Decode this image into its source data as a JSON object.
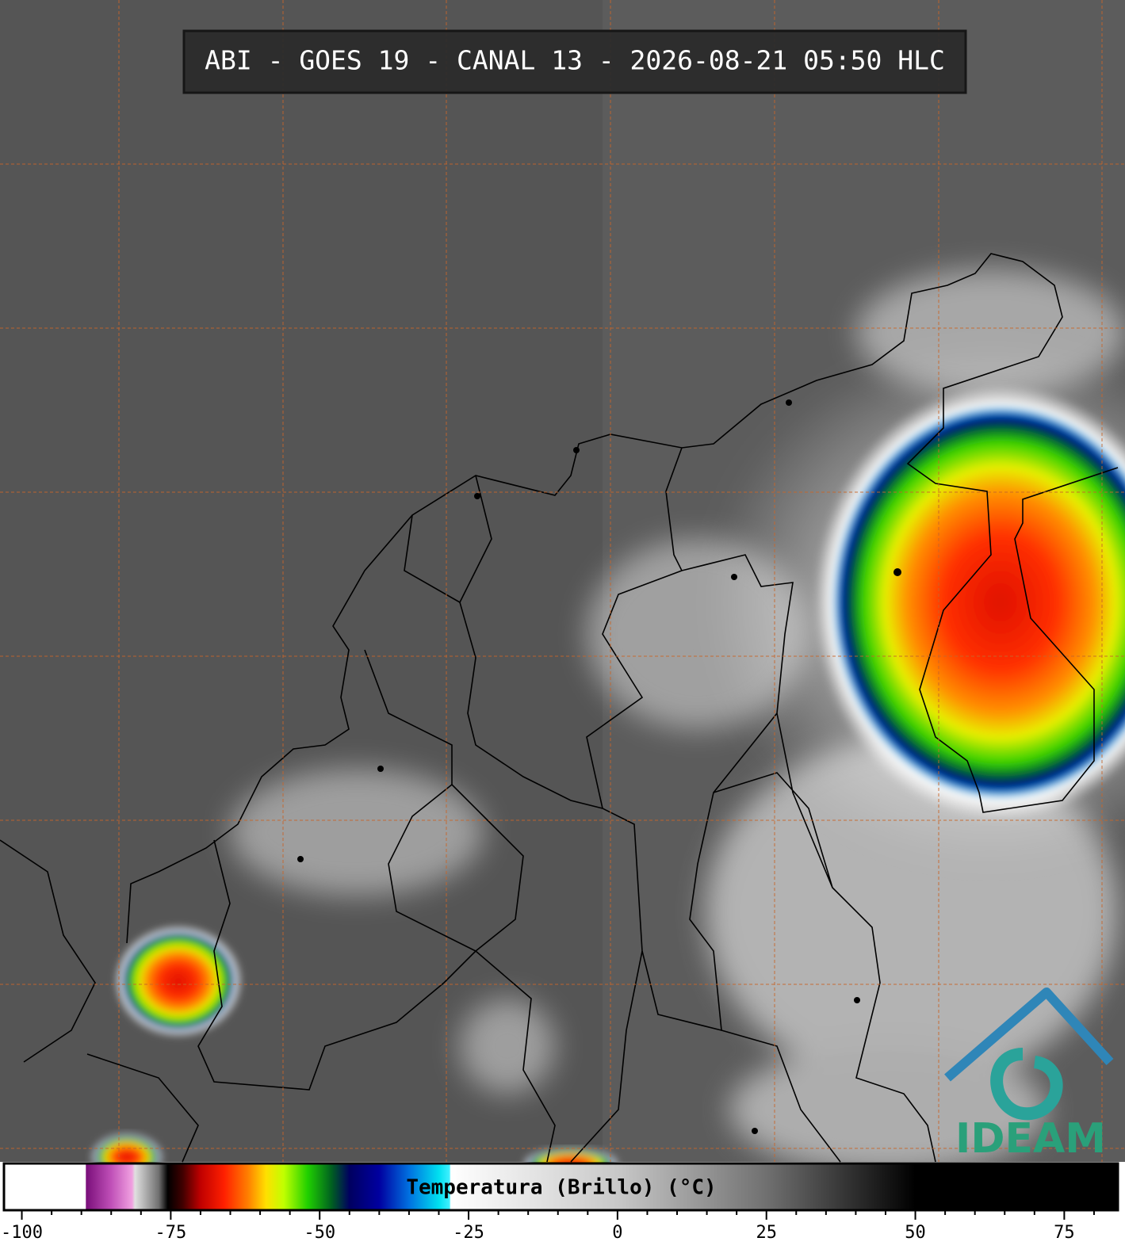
{
  "title": "ABI - GOES 19 - CANAL 13 - 2026-08-21 05:50 HLC",
  "logo": "IDEAM",
  "colorbar": {
    "label": "Temperatura (Brillo) (°C)",
    "xlim": [
      -103,
      84
    ],
    "xticks": [
      -100,
      -75,
      -50,
      -25,
      0,
      25,
      50,
      75
    ],
    "minor_xticks": [
      -95,
      -90,
      -85,
      -80,
      -70,
      -65,
      -60,
      -55,
      -45,
      -40,
      -35,
      -30,
      -20,
      -15,
      -10,
      -5,
      5,
      10,
      15,
      20,
      30,
      35,
      40,
      45,
      55,
      60,
      65,
      70,
      80
    ],
    "stops": [
      {
        "value": -103,
        "color": "#ffffff"
      },
      {
        "value": -89.3,
        "color": "#ffffff"
      },
      {
        "value": -89.2,
        "color": "#7a0f7a"
      },
      {
        "value": -85,
        "color": "#c050b8"
      },
      {
        "value": -81.5,
        "color": "#f0a0e0"
      },
      {
        "value": -81,
        "color": "#e0e0e0"
      },
      {
        "value": -77,
        "color": "#707070"
      },
      {
        "value": -75.5,
        "color": "#000000"
      },
      {
        "value": -73,
        "color": "#400000"
      },
      {
        "value": -70,
        "color": "#c00000"
      },
      {
        "value": -66,
        "color": "#ff2000"
      },
      {
        "value": -62,
        "color": "#ff8000"
      },
      {
        "value": -59,
        "color": "#ffe000"
      },
      {
        "value": -56,
        "color": "#c0ff00"
      },
      {
        "value": -52,
        "color": "#20d000"
      },
      {
        "value": -48,
        "color": "#006020"
      },
      {
        "value": -45,
        "color": "#000060"
      },
      {
        "value": -40,
        "color": "#0000a0"
      },
      {
        "value": -35,
        "color": "#0070e0"
      },
      {
        "value": -30,
        "color": "#00e0f0"
      },
      {
        "value": -28.2,
        "color": "#40f0ff"
      },
      {
        "value": -28,
        "color": "#ffffff"
      },
      {
        "value": 0,
        "color": "#c8c8c8"
      },
      {
        "value": 25,
        "color": "#707070"
      },
      {
        "value": 50,
        "color": "#000000"
      },
      {
        "value": 84,
        "color": "#000000"
      }
    ]
  }
}
